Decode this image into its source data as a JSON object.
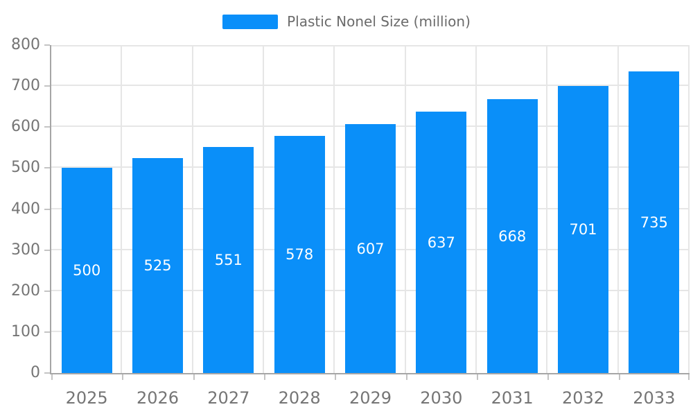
{
  "legend": {
    "label": "Plastic Nonel Size (million)"
  },
  "colors": {
    "bar": "#0a8ff9",
    "grid": "#e6e6e6",
    "axis_line": "#a6a6a6",
    "tick": "#c4c4c4",
    "axis_text": "#757575",
    "legend_text": "#6b6b6b",
    "bar_label_text": "#ffffff",
    "background": "#ffffff"
  },
  "chart_data": {
    "type": "bar",
    "title": "",
    "categories": [
      "2025",
      "2026",
      "2027",
      "2028",
      "2029",
      "2030",
      "2031",
      "2032",
      "2033"
    ],
    "values": [
      500,
      525,
      551,
      578,
      607,
      637,
      668,
      701,
      735
    ],
    "series": [
      {
        "name": "Plastic Nonel Size (million)",
        "values": [
          500,
          525,
          551,
          578,
          607,
          637,
          668,
          701,
          735
        ]
      }
    ],
    "xlabel": "",
    "ylabel": "",
    "ylim": [
      0,
      800
    ],
    "yticks": [
      0,
      100,
      200,
      300,
      400,
      500,
      600,
      700,
      800
    ],
    "grid": true,
    "legend_position": "top-center",
    "value_labels": "inside-center"
  }
}
